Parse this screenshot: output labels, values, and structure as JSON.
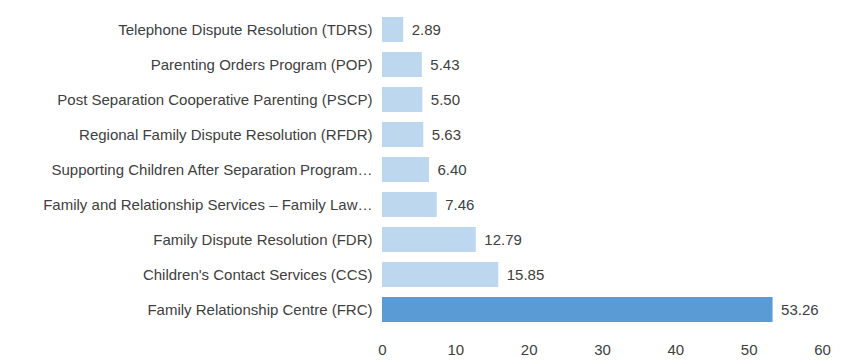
{
  "chart_data": {
    "type": "bar",
    "orientation": "horizontal",
    "categories": [
      "Telephone Dispute Resolution (TDRS)",
      "Parenting Orders Program (POP)",
      "Post Separation Cooperative Parenting (PSCP)",
      "Regional Family Dispute Resolution (RFDR)",
      "Supporting Children After Separation Program…",
      "Family and Relationship Services – Family Law…",
      "Family Dispute Resolution (FDR)",
      "Children's Contact Services (CCS)",
      "Family Relationship Centre (FRC)"
    ],
    "values": [
      2.89,
      5.43,
      5.5,
      5.63,
      6.4,
      7.46,
      12.79,
      15.85,
      53.26
    ],
    "value_labels": [
      "2.89",
      "5.43",
      "5.50",
      "5.63",
      "6.40",
      "7.46",
      "12.79",
      "15.85",
      "53.26"
    ],
    "colors": [
      "#bdd7ee",
      "#bdd7ee",
      "#bdd7ee",
      "#bdd7ee",
      "#bdd7ee",
      "#bdd7ee",
      "#bdd7ee",
      "#bdd7ee",
      "#5b9bd5"
    ],
    "xlim": [
      0,
      60
    ],
    "xticks": [
      0,
      10,
      20,
      30,
      40,
      50,
      60
    ],
    "grid": false,
    "data_labels": true
  }
}
